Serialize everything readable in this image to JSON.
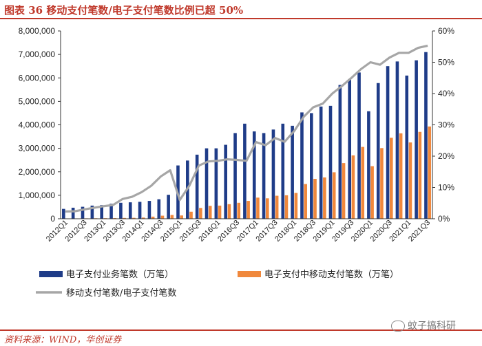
{
  "figure": {
    "title": "图表 36   移动支付笔数/电子支付笔数比例已超 50%",
    "source": "资料来源：WIND，华创证券",
    "watermark": "蚊子搞科研"
  },
  "colors": {
    "accent": "#C0392B",
    "total_bar": "#1F3C88",
    "mobile_bar": "#F0883C",
    "ratio_line": "#A6A6A6"
  },
  "chart_data": {
    "type": "bar",
    "categories": [
      "2012Q1",
      "2012Q2",
      "2012Q3",
      "2012Q4",
      "2013Q1",
      "2013Q2",
      "2013Q3",
      "2013Q4",
      "2014Q1",
      "2014Q2",
      "2014Q3",
      "2014Q4",
      "2015Q1",
      "2015Q2",
      "2015Q3",
      "2015Q4",
      "2016Q1",
      "2016Q2",
      "2016Q3",
      "2016Q4",
      "2017Q1",
      "2017Q2",
      "2017Q3",
      "2017Q4",
      "2018Q1",
      "2018Q2",
      "2018Q3",
      "2018Q4",
      "2019Q1",
      "2019Q2",
      "2019Q3",
      "2019Q4",
      "2020Q1",
      "2020Q2",
      "2020Q3",
      "2020Q4",
      "2021Q1",
      "2021Q2",
      "2021Q3"
    ],
    "x_tick_labels": [
      "2012Q1",
      "2012Q3",
      "2013Q1",
      "2013Q3",
      "2014Q1",
      "2014Q3",
      "2015Q1",
      "2015Q3",
      "2016Q1",
      "2016Q3",
      "2017Q1",
      "2017Q3",
      "2018Q1",
      "2018Q3",
      "2019Q1",
      "2019Q3",
      "2020Q1",
      "2020Q3",
      "2021Q1",
      "2021Q3"
    ],
    "series": [
      {
        "name": "电子支付业务笔数（万笔）",
        "type": "bar",
        "axis": "left",
        "values": [
          420000,
          470000,
          510000,
          560000,
          580000,
          640000,
          680000,
          700000,
          720000,
          760000,
          830000,
          1020000,
          2270000,
          2480000,
          2730000,
          3000000,
          3000000,
          3150000,
          3650000,
          4050000,
          3720000,
          3650000,
          3800000,
          4050000,
          3960000,
          4530000,
          4500000,
          4780000,
          4810000,
          5700000,
          5950000,
          6230000,
          4580000,
          5780000,
          6500000,
          6700000,
          6100000,
          6750000,
          7100000
        ]
      },
      {
        "name": "电子支付中移动支付笔数（万笔）",
        "type": "bar",
        "axis": "left",
        "values": [
          10000,
          15000,
          18000,
          22000,
          25000,
          30000,
          35000,
          40000,
          50000,
          90000,
          130000,
          160000,
          140000,
          300000,
          460000,
          550000,
          560000,
          620000,
          680000,
          760000,
          900000,
          870000,
          980000,
          1000000,
          1100000,
          1480000,
          1700000,
          1760000,
          1980000,
          2370000,
          2700000,
          3060000,
          2240000,
          3010000,
          3450000,
          3640000,
          3250000,
          3700000,
          3930000
        ]
      },
      {
        "name": "移动支付笔数/电子支付笔数",
        "type": "line",
        "axis": "right",
        "values": [
          2.3,
          2.4,
          3.0,
          3.5,
          4.0,
          4.4,
          6.3,
          7.0,
          8.5,
          10.5,
          13.5,
          15.5,
          6.0,
          10.5,
          17.0,
          18.3,
          18.5,
          19.0,
          18.8,
          18.5,
          24.5,
          23.5,
          25.8,
          24.6,
          28.0,
          32.6,
          35.6,
          36.8,
          40.0,
          42.4,
          45.0,
          47.8,
          50.0,
          49.2,
          51.5,
          53.0,
          53.0,
          54.6,
          55.3
        ]
      }
    ],
    "y_left": {
      "min": 0,
      "max": 8000000,
      "ticks": [
        "0",
        "1,000,000",
        "2,000,000",
        "3,000,000",
        "4,000,000",
        "5,000,000",
        "6,000,000",
        "7,000,000",
        "8,000,000"
      ]
    },
    "y_right": {
      "min": 0,
      "max": 60,
      "ticks": [
        "0%",
        "10%",
        "20%",
        "30%",
        "40%",
        "50%",
        "60%"
      ]
    },
    "legend": {
      "position": "bottom",
      "entries": [
        "电子支付业务笔数（万笔）",
        "电子支付中移动支付笔数（万笔）",
        "移动支付笔数/电子支付笔数"
      ]
    }
  }
}
